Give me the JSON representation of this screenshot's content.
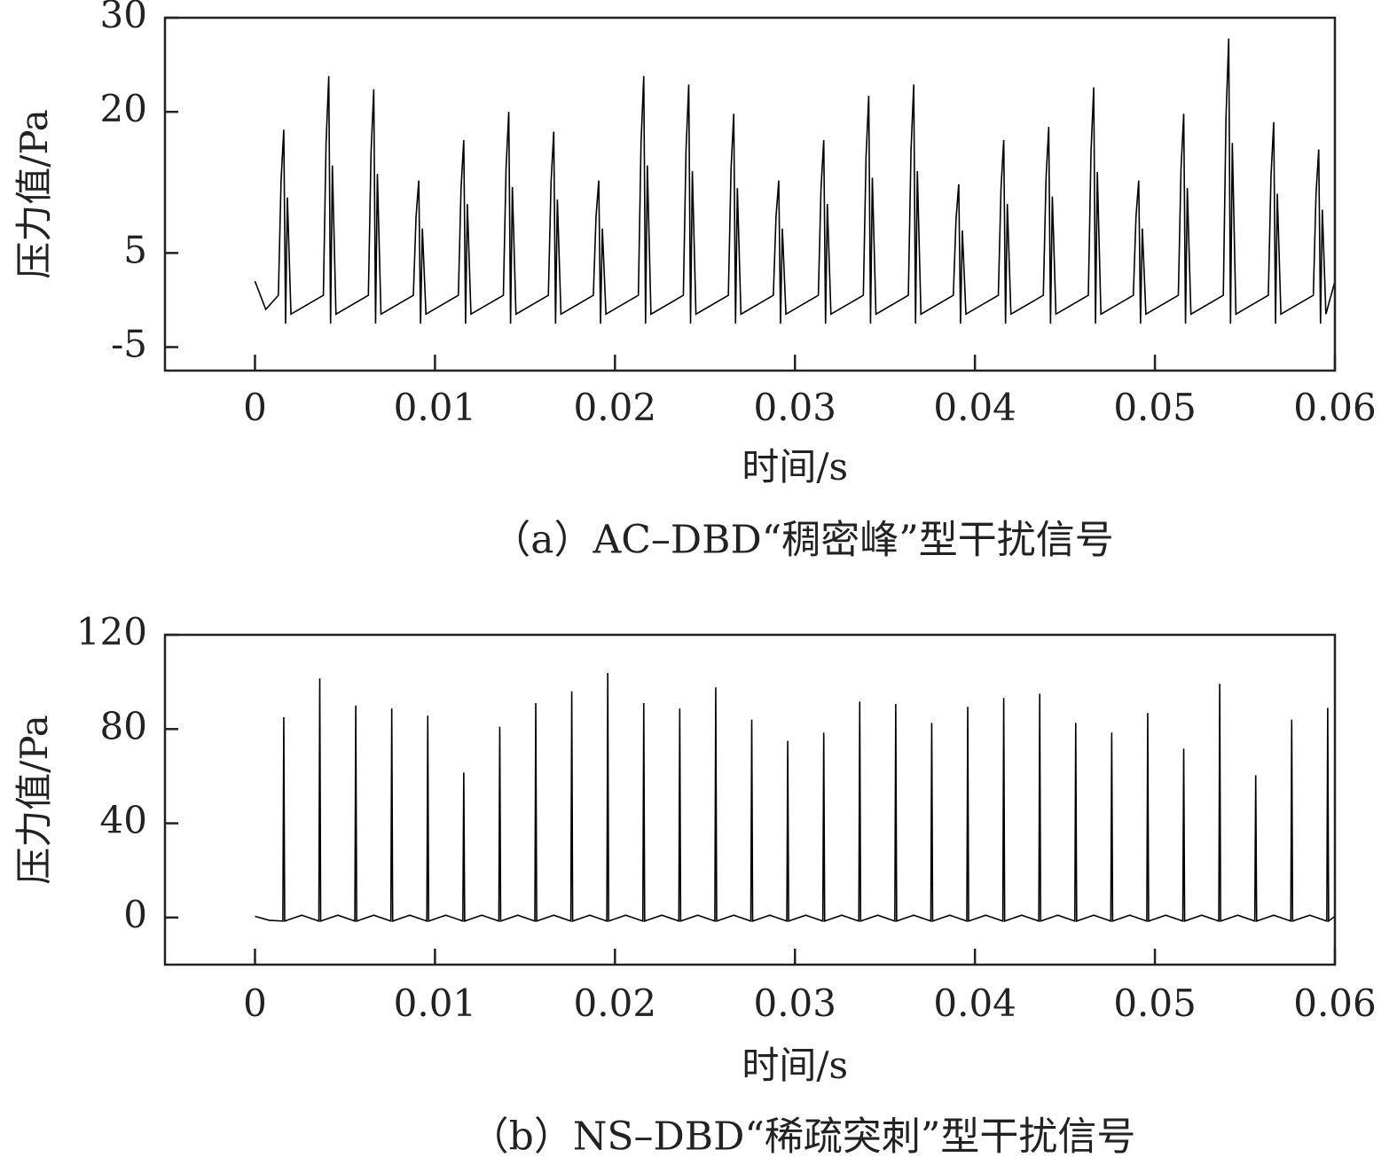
{
  "chart_data": [
    {
      "type": "line",
      "caption": "（a）AC–DBD“稠密峰”型干扰信号",
      "xlabel": "时间/s",
      "ylabel": "压力值/Pa",
      "color": "#000000",
      "xlim": [
        -0.005,
        0.06
      ],
      "ylim": [
        -7.5,
        30
      ],
      "xticks": [
        0,
        0.01,
        0.02,
        0.03,
        0.04,
        0.05,
        0.06
      ],
      "yticks": [
        -5,
        5,
        20,
        30
      ],
      "x": [
        0,
        0.0006,
        0.0013,
        0.00145,
        0.0016,
        0.0017,
        0.0018,
        0.002,
        0.0038,
        0.00395,
        0.0041,
        0.0042,
        0.0043,
        0.0045,
        0.0063,
        0.00645,
        0.0066,
        0.0067,
        0.0068,
        0.007,
        0.0088,
        0.00895,
        0.0091,
        0.0092,
        0.0093,
        0.0095,
        0.0113,
        0.01145,
        0.0116,
        0.0117,
        0.0118,
        0.012,
        0.0138,
        0.01395,
        0.0141,
        0.0142,
        0.0143,
        0.0145,
        0.0163,
        0.01645,
        0.0166,
        0.0167,
        0.0168,
        0.017,
        0.0188,
        0.01895,
        0.0191,
        0.0192,
        0.0193,
        0.0195,
        0.0213,
        0.02145,
        0.0216,
        0.0217,
        0.0218,
        0.022,
        0.0238,
        0.02395,
        0.0241,
        0.0242,
        0.0243,
        0.0245,
        0.0263,
        0.02645,
        0.0266,
        0.0267,
        0.0268,
        0.027,
        0.0288,
        0.02895,
        0.0291,
        0.0292,
        0.0293,
        0.0295,
        0.0313,
        0.03145,
        0.0316,
        0.0317,
        0.0318,
        0.032,
        0.0338,
        0.03395,
        0.0341,
        0.0342,
        0.0343,
        0.0345,
        0.0363,
        0.03645,
        0.0366,
        0.0367,
        0.0368,
        0.037,
        0.0388,
        0.03895,
        0.0391,
        0.0392,
        0.0393,
        0.0395,
        0.0413,
        0.04145,
        0.0416,
        0.0417,
        0.0418,
        0.042,
        0.0438,
        0.04395,
        0.0441,
        0.0442,
        0.0443,
        0.0445,
        0.0463,
        0.04645,
        0.0466,
        0.0467,
        0.0468,
        0.047,
        0.0488,
        0.04895,
        0.0491,
        0.0492,
        0.0493,
        0.0495,
        0.0513,
        0.05145,
        0.0516,
        0.0517,
        0.0518,
        0.052,
        0.0538,
        0.05395,
        0.0541,
        0.0542,
        0.0543,
        0.0545,
        0.0563,
        0.05645,
        0.0566,
        0.0567,
        0.0568,
        0.057,
        0.0588,
        0.05895,
        0.0591,
        0.0592,
        0.0593,
        0.0595,
        0.06
      ],
      "values": [
        2,
        -1,
        0.5,
        12.7,
        18.1,
        -2.5,
        10.9,
        -1.5,
        0.5,
        16.7,
        23.8,
        -2.5,
        14.3,
        -1.5,
        0.5,
        15.7,
        22.4,
        -2.5,
        13.4,
        -1.5,
        0.5,
        8.9,
        12.7,
        -2.5,
        7.6,
        -1.5,
        0.5,
        11.9,
        17,
        -2.5,
        10.2,
        -1.5,
        0.5,
        14,
        20,
        -2.5,
        12,
        -1.5,
        0.5,
        12.5,
        17.9,
        -2.5,
        10.7,
        -1.5,
        0.5,
        8.9,
        12.7,
        -2.5,
        7.6,
        -1.5,
        0.5,
        16.7,
        23.8,
        -2.5,
        14.3,
        -1.5,
        0.5,
        16,
        22.9,
        -2.5,
        13.7,
        -1.5,
        0.5,
        13.9,
        19.8,
        -2.5,
        11.9,
        -1.5,
        0.5,
        8.9,
        12.7,
        -2.5,
        7.6,
        -1.5,
        0.5,
        11.9,
        17,
        -2.5,
        10.2,
        -1.5,
        0.5,
        15.2,
        21.7,
        -2.5,
        13,
        -1.5,
        0.5,
        16,
        22.9,
        -2.5,
        13.7,
        -1.5,
        0.5,
        8.6,
        12.3,
        -2.5,
        7.4,
        -1.5,
        0.5,
        11.9,
        17,
        -2.5,
        10.2,
        -1.5,
        0.5,
        12.9,
        18.4,
        -2.5,
        11,
        -1.5,
        0.5,
        15.8,
        22.6,
        -2.5,
        13.6,
        -1.5,
        0.5,
        8.9,
        12.7,
        -2.5,
        7.6,
        -1.5,
        0.5,
        13.9,
        19.8,
        -2.5,
        11.9,
        -1.5,
        0.5,
        19.5,
        27.8,
        -2.5,
        16.7,
        -1.5,
        0.5,
        13.2,
        18.9,
        -2.5,
        11.3,
        -1.5,
        0.5,
        11.2,
        16,
        -2.5,
        9.6,
        -1.5,
        2
      ]
    },
    {
      "type": "line",
      "caption": "（b）NS–DBD“稀疏突刺”型干扰信号",
      "xlabel": "时间/s",
      "ylabel": "压力值/Pa",
      "color": "#000000",
      "xlim": [
        -0.005,
        0.06
      ],
      "ylim": [
        -20,
        120
      ],
      "xticks": [
        0,
        0.01,
        0.02,
        0.03,
        0.04,
        0.05,
        0.06
      ],
      "yticks": [
        0,
        40,
        80,
        120
      ],
      "x": [
        0,
        0.0008,
        0.00155,
        0.0016,
        0.00165,
        0.0026,
        0.00355,
        0.0036,
        0.00365,
        0.0046,
        0.00555,
        0.0056,
        0.00565,
        0.0066,
        0.00755,
        0.0076,
        0.00765,
        0.0086,
        0.00955,
        0.0096,
        0.00965,
        0.0106,
        0.01155,
        0.0116,
        0.01165,
        0.0126,
        0.01355,
        0.0136,
        0.01365,
        0.0146,
        0.01555,
        0.0156,
        0.01565,
        0.0166,
        0.01755,
        0.0176,
        0.01765,
        0.0186,
        0.01955,
        0.0196,
        0.01965,
        0.0206,
        0.02155,
        0.0216,
        0.02165,
        0.0226,
        0.02355,
        0.0236,
        0.02365,
        0.0246,
        0.02555,
        0.0256,
        0.02565,
        0.0266,
        0.02755,
        0.0276,
        0.02765,
        0.0286,
        0.02955,
        0.0296,
        0.02965,
        0.0306,
        0.03155,
        0.0316,
        0.03165,
        0.0326,
        0.03355,
        0.0336,
        0.03365,
        0.0346,
        0.03555,
        0.0356,
        0.03565,
        0.0366,
        0.03755,
        0.0376,
        0.03765,
        0.0386,
        0.03955,
        0.0396,
        0.03965,
        0.0406,
        0.04155,
        0.0416,
        0.04165,
        0.0426,
        0.04355,
        0.0436,
        0.04365,
        0.0446,
        0.04555,
        0.0456,
        0.04565,
        0.0466,
        0.04755,
        0.0476,
        0.04765,
        0.0486,
        0.04955,
        0.0496,
        0.04965,
        0.0506,
        0.05155,
        0.0516,
        0.05165,
        0.0526,
        0.05355,
        0.0536,
        0.05365,
        0.0546,
        0.05555,
        0.0556,
        0.05565,
        0.0566,
        0.05755,
        0.0576,
        0.05765,
        0.0586,
        0.05955,
        0.0596,
        0.05965,
        0.06
      ],
      "values": [
        0.5,
        -1.2,
        -1.5,
        85,
        -1.5,
        1,
        -1.5,
        101.5,
        -1.5,
        1,
        -1.5,
        90,
        -1.5,
        1,
        -1.5,
        88.7,
        -1.5,
        1,
        -1.5,
        85.7,
        -1.5,
        1,
        -1.5,
        61.5,
        -1.5,
        1,
        -1.5,
        81,
        -1.5,
        1,
        -1.5,
        91,
        -1.5,
        1,
        -1.5,
        96,
        -1.5,
        1,
        -1.5,
        103.8,
        -1.5,
        1,
        -1.5,
        91,
        -1.5,
        1,
        -1.5,
        88.7,
        -1.5,
        1,
        -1.5,
        97.7,
        -1.5,
        1,
        -1.5,
        84,
        -1.5,
        1,
        -1.5,
        75,
        -1.5,
        1,
        -1.5,
        78.5,
        -1.5,
        1,
        -1.5,
        91.7,
        -1.5,
        1,
        -1.5,
        90.6,
        -1.5,
        1,
        -1.5,
        82.6,
        -1.5,
        1,
        -1.5,
        89.4,
        -1.5,
        1,
        -1.5,
        93.2,
        -1.5,
        1,
        -1.5,
        95,
        -1.5,
        1,
        -1.5,
        82.6,
        -1.5,
        1,
        -1.5,
        78.5,
        -1.5,
        1,
        -1.5,
        86.8,
        -1.5,
        1,
        -1.5,
        71.7,
        -1.5,
        1,
        -1.5,
        99.2,
        -1.5,
        1,
        -1.5,
        60.4,
        -1.5,
        1,
        -1.5,
        84,
        -1.5,
        1,
        -1.5,
        89,
        -1.5,
        0.5
      ]
    }
  ]
}
